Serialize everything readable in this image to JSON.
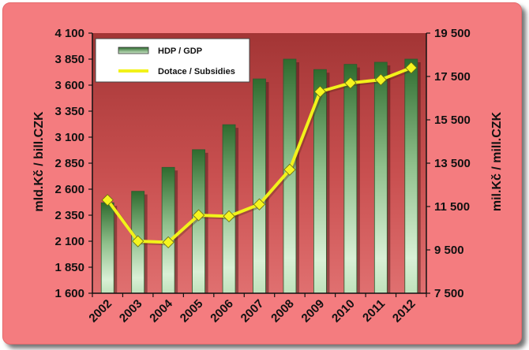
{
  "chart_data": {
    "type": "bar+line",
    "categories": [
      "2002",
      "2003",
      "2004",
      "2005",
      "2006",
      "2007",
      "2008",
      "2009",
      "2010",
      "2011",
      "2012"
    ],
    "series": [
      {
        "name": "HDP / GDP",
        "type": "bar",
        "axis": "left",
        "values": [
          2470,
          2580,
          2810,
          2980,
          3220,
          3660,
          3850,
          3750,
          3800,
          3820,
          3850
        ]
      },
      {
        "name": "Dotace / Subsidies",
        "type": "line",
        "axis": "right",
        "values": [
          11800,
          9900,
          9850,
          11100,
          11050,
          11600,
          13200,
          16800,
          17200,
          17350,
          17900
        ]
      }
    ],
    "y_left": {
      "label": "mld.Kč / bill.CZK",
      "min": 1600,
      "max": 4100,
      "ticks": [
        1600,
        1850,
        2100,
        2350,
        2600,
        2850,
        3100,
        3350,
        3600,
        3850,
        4100
      ],
      "tick_labels": [
        "1 600",
        "1 850",
        "2 100",
        "2 350",
        "2 600",
        "2 850",
        "3 100",
        "3 350",
        "3 600",
        "3 850",
        "4 100"
      ]
    },
    "y_right": {
      "label": "mil.Kč / mill.CZK",
      "min": 7500,
      "max": 19500,
      "ticks": [
        7500,
        9500,
        11500,
        13500,
        15500,
        17500,
        19500
      ],
      "tick_labels": [
        "7 500",
        "9 500",
        "11 500",
        "13 500",
        "15 500",
        "17 500",
        "19 500"
      ]
    },
    "legend_position": "top-left",
    "grid": false,
    "colors": {
      "background": "#f47c7f",
      "bar_top": "#2e6b2e",
      "bar_mid": "#cfeccc",
      "line": "#f2f21a",
      "marker": "#f5f51f"
    }
  }
}
